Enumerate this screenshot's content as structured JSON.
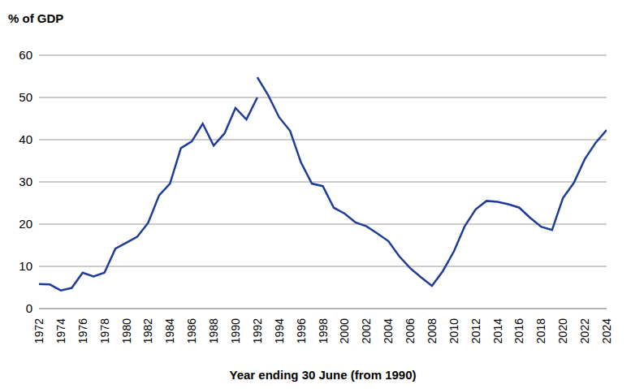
{
  "chart_data": {
    "type": "line",
    "y_label": "% of GDP",
    "x_label": "Year ending 30 June (from 1990)",
    "xlim": [
      1972,
      2024
    ],
    "xticks": [
      1972,
      1974,
      1976,
      1978,
      1980,
      1982,
      1984,
      1986,
      1988,
      1990,
      1992,
      1994,
      1996,
      1998,
      2000,
      2002,
      2004,
      2006,
      2008,
      2010,
      2012,
      2014,
      2016,
      2018,
      2020,
      2022,
      2024
    ],
    "ylim": [
      0,
      60
    ],
    "yticks": [
      0,
      10,
      20,
      30,
      40,
      50,
      60
    ],
    "grid": true,
    "series": [
      {
        "color": "#1f3c99",
        "x": [
          1972,
          1973,
          1974,
          1975,
          1976,
          1977,
          1978,
          1979,
          1980,
          1981,
          1982,
          1983,
          1984,
          1985,
          1986,
          1987,
          1988,
          1989,
          1990,
          1991,
          1992
        ],
        "values": [
          5.8,
          5.7,
          4.3,
          4.9,
          8.5,
          7.6,
          8.5,
          14.2,
          15.6,
          17.0,
          20.3,
          26.8,
          29.6,
          38.0,
          39.6,
          43.8,
          38.6,
          41.5,
          47.5,
          44.8,
          50.0
        ]
      },
      {
        "color": "#1f3c99",
        "x": [
          1992,
          1993,
          1994,
          1995,
          1996,
          1997,
          1998,
          1999,
          2000,
          2001,
          2002,
          2003,
          2004,
          2005,
          2006,
          2007,
          2008,
          2009,
          2010,
          2011,
          2012,
          2013,
          2014,
          2015,
          2016,
          2017,
          2018,
          2019,
          2020,
          2021,
          2022,
          2023,
          2024
        ],
        "values": [
          54.8,
          50.5,
          45.3,
          42.1,
          34.6,
          29.6,
          29.0,
          23.9,
          22.5,
          20.4,
          19.5,
          17.8,
          16.0,
          12.4,
          9.6,
          7.4,
          5.4,
          8.9,
          13.5,
          19.5,
          23.5,
          25.5,
          25.3,
          24.7,
          23.9,
          21.5,
          19.4,
          18.6,
          26.2,
          29.8,
          35.4,
          39.3,
          42.3
        ]
      }
    ]
  }
}
